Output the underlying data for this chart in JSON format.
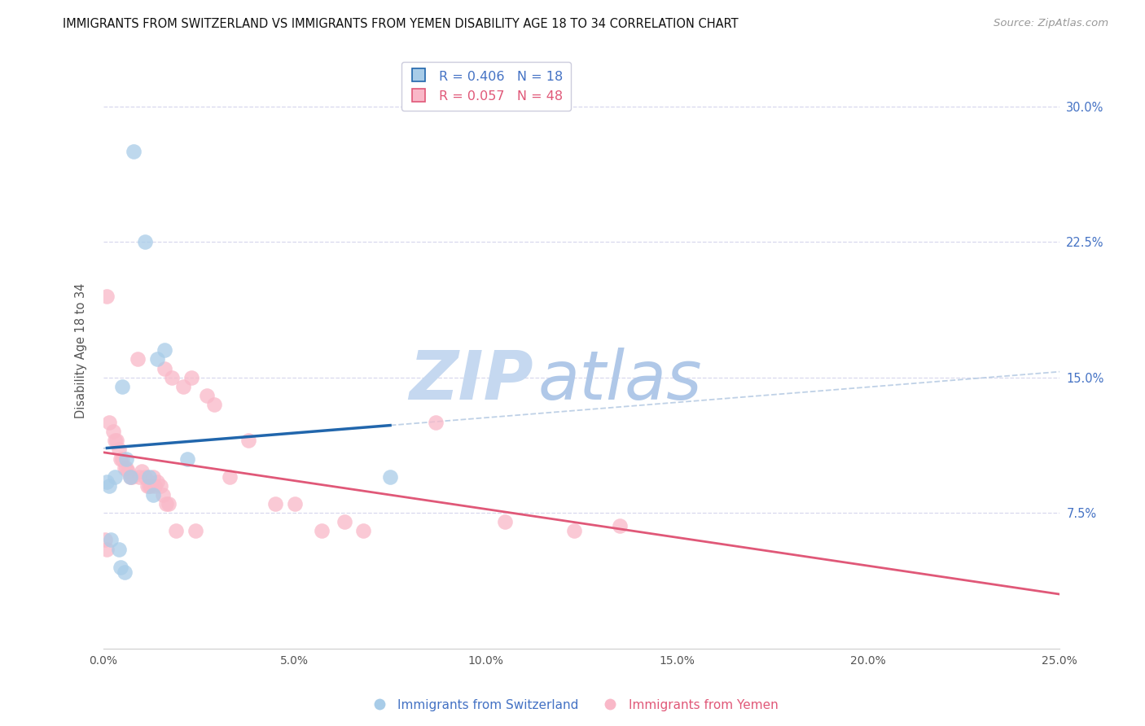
{
  "title": "IMMIGRANTS FROM SWITZERLAND VS IMMIGRANTS FROM YEMEN DISABILITY AGE 18 TO 34 CORRELATION CHART",
  "source": "Source: ZipAtlas.com",
  "ylabel": "Disability Age 18 to 34",
  "x_tick_labels": [
    "0.0%",
    "5.0%",
    "10.0%",
    "15.0%",
    "20.0%",
    "25.0%"
  ],
  "x_tick_values": [
    0.0,
    5.0,
    10.0,
    15.0,
    20.0,
    25.0
  ],
  "y_tick_labels": [
    "7.5%",
    "15.0%",
    "22.5%",
    "30.0%"
  ],
  "y_tick_values": [
    7.5,
    15.0,
    22.5,
    30.0
  ],
  "xlim": [
    0,
    25.0
  ],
  "ylim": [
    0,
    33.0
  ],
  "swiss_r": "0.406",
  "swiss_n": "18",
  "yemen_r": "0.057",
  "yemen_n": "48",
  "switzerland_x": [
    0.8,
    1.1,
    1.4,
    1.6,
    0.5,
    0.3,
    0.6,
    0.15,
    0.1,
    0.7,
    0.2,
    2.2,
    1.2,
    1.3,
    0.4,
    0.45,
    0.55,
    7.5
  ],
  "switzerland_y": [
    27.5,
    22.5,
    16.0,
    16.5,
    14.5,
    9.5,
    10.5,
    9.0,
    9.2,
    9.5,
    6.0,
    10.5,
    9.5,
    8.5,
    5.5,
    4.5,
    4.2,
    9.5
  ],
  "yemen_x": [
    0.1,
    0.9,
    1.6,
    1.8,
    2.1,
    2.3,
    2.7,
    2.9,
    0.15,
    0.25,
    0.3,
    0.35,
    0.4,
    0.45,
    0.5,
    0.55,
    0.6,
    0.65,
    0.7,
    0.75,
    0.95,
    1.0,
    1.1,
    1.15,
    1.2,
    1.25,
    1.3,
    1.35,
    1.4,
    1.5,
    1.55,
    1.65,
    1.7,
    3.3,
    3.8,
    4.5,
    5.0,
    5.7,
    6.3,
    6.8,
    8.7,
    10.5,
    12.3,
    13.5,
    0.05,
    0.08,
    2.4,
    1.9
  ],
  "yemen_y": [
    19.5,
    16.0,
    15.5,
    15.0,
    14.5,
    15.0,
    14.0,
    13.5,
    12.5,
    12.0,
    11.5,
    11.5,
    11.0,
    10.5,
    10.5,
    10.0,
    10.0,
    9.8,
    9.5,
    9.5,
    9.5,
    9.8,
    9.5,
    9.0,
    9.0,
    9.0,
    9.5,
    9.0,
    9.2,
    9.0,
    8.5,
    8.0,
    8.0,
    9.5,
    11.5,
    8.0,
    8.0,
    6.5,
    7.0,
    6.5,
    12.5,
    7.0,
    6.5,
    6.8,
    6.0,
    5.5,
    6.5,
    6.5
  ],
  "swiss_dot_color": "#a8cce8",
  "yemen_dot_color": "#f9b8c8",
  "swiss_line_color": "#2166ac",
  "swiss_dash_color": "#b8cce4",
  "yemen_line_color": "#e05878",
  "background_color": "#ffffff",
  "grid_color": "#d8d8ee",
  "watermark_zip_color": "#c5d8f0",
  "watermark_atlas_color": "#b0c8e8",
  "right_tick_color": "#4472c4",
  "legend_border_color": "#ccccdd",
  "swiss_legend_color": "#4472c4",
  "yemen_legend_color": "#e05878",
  "bottom_legend_swiss_color": "#4472c4",
  "bottom_legend_yemen_color": "#e05878"
}
